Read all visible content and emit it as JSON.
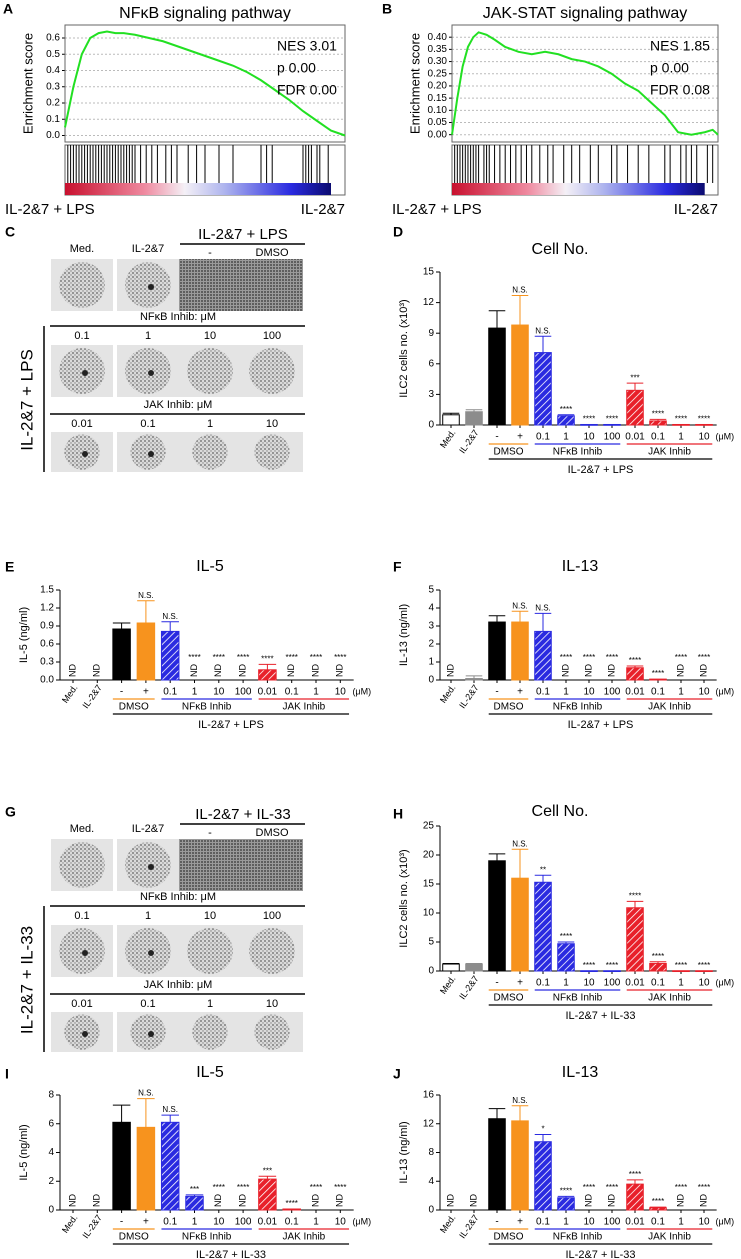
{
  "chart_data": [
    {
      "type": "gsea",
      "panel": "A",
      "title": "NFκB signaling pathway",
      "ylabel": "Enrichment score",
      "stats": [
        "NES 3.01",
        "p 0.00",
        "FDR 0.00"
      ],
      "color": "#22e022",
      "x": [
        0,
        3,
        6,
        9,
        12,
        15,
        18,
        21,
        25,
        30,
        35,
        40,
        45,
        50,
        55,
        60,
        65,
        70,
        75,
        80,
        85,
        90,
        95,
        100
      ],
      "values": [
        0.05,
        0.3,
        0.5,
        0.6,
        0.63,
        0.64,
        0.63,
        0.63,
        0.62,
        0.6,
        0.58,
        0.55,
        0.52,
        0.49,
        0.46,
        0.43,
        0.39,
        0.34,
        0.28,
        0.22,
        0.15,
        0.09,
        0.03,
        0.0
      ],
      "hits": [
        1,
        2,
        3,
        4,
        5,
        6,
        7,
        8,
        9,
        10,
        11,
        12,
        13,
        14,
        15,
        16,
        17,
        18,
        19,
        20,
        21,
        22,
        23,
        24,
        25,
        27,
        29,
        31,
        33,
        36,
        38,
        40,
        44,
        47,
        50,
        55,
        60,
        70,
        72,
        74,
        85,
        86,
        87,
        88,
        90,
        91,
        94
      ],
      "xlim": [
        0,
        100
      ],
      "ylim": [
        -0.04,
        0.68
      ],
      "yticks": [
        {
          "value": 0,
          "label": "0.0"
        },
        0.1,
        0.2,
        0.3,
        0.4,
        0.5,
        0.6
      ],
      "grid": true,
      "left_label": "IL-2&7 + LPS",
      "right_label": "IL-2&7",
      "left_color": "#e8202a",
      "right_color": "#2121d8"
    },
    {
      "type": "gsea",
      "panel": "B",
      "title": "JAK-STAT signaling pathway",
      "ylabel": "Enrichment score",
      "stats": [
        "NES 1.85",
        "p 0.00",
        "FDR 0.08"
      ],
      "color": "#22e022",
      "x": [
        0,
        2,
        4,
        6,
        8,
        10,
        13,
        16,
        20,
        25,
        30,
        35,
        40,
        45,
        50,
        55,
        60,
        65,
        70,
        75,
        80,
        85,
        90,
        95,
        98,
        100
      ],
      "values": [
        0.0,
        0.15,
        0.28,
        0.36,
        0.4,
        0.42,
        0.41,
        0.39,
        0.36,
        0.34,
        0.33,
        0.34,
        0.33,
        0.31,
        0.3,
        0.28,
        0.25,
        0.21,
        0.18,
        0.13,
        0.08,
        0.01,
        0.0,
        0.01,
        0.02,
        0.0
      ],
      "hits": [
        1,
        2,
        3,
        4,
        5,
        6,
        7,
        8,
        9,
        10,
        12,
        13,
        14,
        16,
        18,
        20,
        22,
        24,
        26,
        28,
        30,
        33,
        36,
        38,
        42,
        45,
        48,
        52,
        55,
        60,
        62,
        66,
        70,
        74,
        80,
        82,
        86,
        88,
        90,
        92,
        96,
        98
      ],
      "xlim": [
        0,
        100
      ],
      "ylim": [
        -0.03,
        0.45
      ],
      "yticks": [
        {
          "value": 0,
          "label": "0.00"
        },
        0.05,
        {
          "value": 0.1,
          "label": "0.10"
        },
        0.15,
        {
          "value": 0.2,
          "label": "0.20"
        },
        0.25,
        {
          "value": 0.3,
          "label": "0.30"
        },
        0.35,
        {
          "value": 0.4,
          "label": "0.40"
        }
      ],
      "grid": true,
      "left_label": "IL-2&7 + LPS",
      "right_label": "IL-2&7",
      "left_color": "#e8202a",
      "right_color": "#2121d8"
    },
    {
      "type": "bar",
      "panel": "D",
      "title": "Cell No.",
      "ylabel": "ILC2 cells no. (x10³)",
      "xlabel": "IL-2&7 + LPS",
      "unit": "(μM)",
      "categories": [
        "Med.",
        "IL-2&7",
        "-",
        "+",
        "0.1",
        "1",
        "10",
        "100",
        "0.01",
        "0.1",
        "1",
        "10"
      ],
      "values": [
        1.0,
        1.3,
        9.5,
        9.8,
        7.1,
        0.9,
        0.05,
        0.05,
        3.4,
        0.4,
        0.05,
        0.05
      ],
      "errors": [
        0.15,
        0.2,
        1.7,
        2.9,
        1.6,
        0.1,
        null,
        null,
        0.7,
        0.15,
        null,
        null
      ],
      "annotations": [
        null,
        null,
        null,
        "N.S.",
        "N.S.",
        "****",
        "****",
        "****",
        "***",
        "****",
        "****",
        "****"
      ],
      "colors": [
        "#ffffff",
        "#8c8c8c",
        "#000000",
        "#f7931e",
        "#2a2ae0",
        "#2a2ae0",
        "#2a2ae0",
        "#2a2ae0",
        "#e8202a",
        "#e8202a",
        "#e8202a",
        "#e8202a"
      ],
      "hatch": [
        false,
        false,
        false,
        false,
        true,
        true,
        true,
        true,
        true,
        true,
        true,
        true
      ],
      "groups": [
        {
          "name": "DMSO",
          "color": "#f7931e",
          "span": [
            2,
            3
          ]
        },
        {
          "name": "NFκB Inhib",
          "color": "#2a2ae0",
          "span": [
            4,
            7
          ]
        },
        {
          "name": "JAK Inhib",
          "color": "#e8202a",
          "span": [
            8,
            11
          ]
        }
      ],
      "ylim": [
        0,
        15
      ],
      "yticks": [
        0,
        3,
        6,
        9,
        12,
        15
      ]
    },
    {
      "type": "bar",
      "panel": "E",
      "title": "IL-5",
      "ylabel": "IL-5 (ng/ml)",
      "xlabel": "IL-2&7 + LPS",
      "unit": "(μM)",
      "categories": [
        "Med.",
        "IL-2&7",
        "-",
        "+",
        "0.1",
        "1",
        "10",
        "100",
        "0.01",
        "0.1",
        "1",
        "10"
      ],
      "values": [
        null,
        null,
        0.85,
        0.95,
        0.81,
        null,
        null,
        null,
        0.17,
        null,
        null,
        null
      ],
      "errors": [
        null,
        null,
        0.1,
        0.37,
        0.16,
        null,
        null,
        null,
        0.09,
        null,
        null,
        null
      ],
      "value_labels": [
        "ND",
        "ND",
        null,
        null,
        null,
        "ND",
        "ND",
        "ND",
        null,
        "ND",
        "ND",
        "ND"
      ],
      "annotations": [
        null,
        null,
        null,
        "N.S.",
        "N.S.",
        "****",
        "****",
        "****",
        "****",
        "****",
        "****",
        "****"
      ],
      "colors": [
        "#ffffff",
        "#8c8c8c",
        "#000000",
        "#f7931e",
        "#2a2ae0",
        "#2a2ae0",
        "#2a2ae0",
        "#2a2ae0",
        "#e8202a",
        "#e8202a",
        "#e8202a",
        "#e8202a"
      ],
      "hatch": [
        false,
        false,
        false,
        false,
        true,
        true,
        true,
        true,
        true,
        true,
        true,
        true
      ],
      "groups": [
        {
          "name": "DMSO",
          "color": "#f7931e",
          "span": [
            2,
            3
          ]
        },
        {
          "name": "NFκB Inhib",
          "color": "#2a2ae0",
          "span": [
            4,
            7
          ]
        },
        {
          "name": "JAK Inhib",
          "color": "#e8202a",
          "span": [
            8,
            11
          ]
        }
      ],
      "ylim": [
        0,
        1.5
      ],
      "yticks": [
        {
          "value": 0,
          "label": "0.0"
        },
        0.3,
        0.6,
        0.9,
        1.2,
        1.5
      ]
    },
    {
      "type": "bar",
      "panel": "F",
      "title": "IL-13",
      "ylabel": "IL-13 (ng/ml)",
      "xlabel": "IL-2&7 + LPS",
      "unit": "(μM)",
      "categories": [
        "Med.",
        "IL-2&7",
        "-",
        "+",
        "0.1",
        "1",
        "10",
        "100",
        "0.01",
        "0.1",
        "1",
        "10"
      ],
      "values": [
        null,
        0.08,
        3.22,
        3.22,
        2.7,
        null,
        null,
        null,
        0.68,
        0.05,
        null,
        null
      ],
      "errors": [
        null,
        0.15,
        0.35,
        0.6,
        1.0,
        null,
        null,
        null,
        0.1,
        null,
        null,
        null
      ],
      "value_labels": [
        "ND",
        null,
        null,
        null,
        null,
        "ND",
        "ND",
        "ND",
        null,
        null,
        "ND",
        "ND"
      ],
      "annotations": [
        null,
        null,
        null,
        "N.S.",
        "N.S.",
        "****",
        "****",
        "****",
        "****",
        "****",
        "****",
        "****"
      ],
      "colors": [
        "#ffffff",
        "#8c8c8c",
        "#000000",
        "#f7931e",
        "#2a2ae0",
        "#2a2ae0",
        "#2a2ae0",
        "#2a2ae0",
        "#e8202a",
        "#e8202a",
        "#e8202a",
        "#e8202a"
      ],
      "hatch": [
        false,
        false,
        false,
        false,
        true,
        true,
        true,
        true,
        true,
        true,
        true,
        true
      ],
      "groups": [
        {
          "name": "DMSO",
          "color": "#f7931e",
          "span": [
            2,
            3
          ]
        },
        {
          "name": "NFκB Inhib",
          "color": "#2a2ae0",
          "span": [
            4,
            7
          ]
        },
        {
          "name": "JAK Inhib",
          "color": "#e8202a",
          "span": [
            8,
            11
          ]
        }
      ],
      "ylim": [
        0,
        5
      ],
      "yticks": [
        0,
        1,
        2,
        3,
        4,
        5
      ]
    },
    {
      "type": "bar",
      "panel": "H",
      "title": "Cell No.",
      "ylabel": "ILC2 cells no. (x10³)",
      "xlabel": "IL-2&7 + IL-33",
      "unit": "(μM)",
      "categories": [
        "Med.",
        "IL-2&7",
        "-",
        "+",
        "0.1",
        "1",
        "10",
        "100",
        "0.01",
        "0.1",
        "1",
        "10"
      ],
      "values": [
        1.2,
        1.2,
        19,
        16,
        15.3,
        4.7,
        0.05,
        0.05,
        10.9,
        1.3,
        0.05,
        0.05
      ],
      "errors": [
        0.1,
        0.1,
        1.2,
        5,
        1.2,
        0.3,
        null,
        null,
        1.1,
        0.3,
        null,
        null
      ],
      "annotations": [
        null,
        null,
        null,
        "N.S.",
        "**",
        "****",
        "****",
        "****",
        "****",
        "****",
        "****",
        "****"
      ],
      "colors": [
        "#ffffff",
        "#8c8c8c",
        "#000000",
        "#f7931e",
        "#2a2ae0",
        "#2a2ae0",
        "#2a2ae0",
        "#2a2ae0",
        "#e8202a",
        "#e8202a",
        "#e8202a",
        "#e8202a"
      ],
      "hatch": [
        false,
        false,
        false,
        false,
        true,
        true,
        true,
        true,
        true,
        true,
        true,
        true
      ],
      "groups": [
        {
          "name": "DMSO",
          "color": "#f7931e",
          "span": [
            2,
            3
          ]
        },
        {
          "name": "NFκB Inhib",
          "color": "#2a2ae0",
          "span": [
            4,
            7
          ]
        },
        {
          "name": "JAK Inhib",
          "color": "#e8202a",
          "span": [
            8,
            11
          ]
        }
      ],
      "ylim": [
        0,
        25
      ],
      "yticks": [
        0,
        5,
        10,
        15,
        20,
        25
      ]
    },
    {
      "type": "bar",
      "panel": "I",
      "title": "IL-5",
      "ylabel": "IL-5 (ng/ml)",
      "xlabel": "IL-2&7 + IL-33",
      "unit": "(μM)",
      "categories": [
        "Med.",
        "IL-2&7",
        "-",
        "+",
        "0.1",
        "1",
        "10",
        "100",
        "0.01",
        "0.1",
        "1",
        "10"
      ],
      "values": [
        null,
        null,
        6.1,
        5.75,
        6.1,
        0.95,
        null,
        null,
        2.15,
        0.07,
        null,
        null
      ],
      "errors": [
        null,
        null,
        1.2,
        2.0,
        0.5,
        0.1,
        null,
        null,
        0.2,
        null,
        null,
        null
      ],
      "value_labels": [
        "ND",
        "ND",
        null,
        null,
        null,
        null,
        "ND",
        "ND",
        null,
        null,
        "ND",
        "ND"
      ],
      "annotations": [
        null,
        null,
        null,
        "N.S.",
        "N.S.",
        "***",
        "****",
        "****",
        "***",
        "****",
        "****",
        "****"
      ],
      "colors": [
        "#ffffff",
        "#8c8c8c",
        "#000000",
        "#f7931e",
        "#2a2ae0",
        "#2a2ae0",
        "#2a2ae0",
        "#2a2ae0",
        "#e8202a",
        "#e8202a",
        "#e8202a",
        "#e8202a"
      ],
      "hatch": [
        false,
        false,
        false,
        false,
        true,
        true,
        true,
        true,
        true,
        true,
        true,
        true
      ],
      "groups": [
        {
          "name": "DMSO",
          "color": "#f7931e",
          "span": [
            2,
            3
          ]
        },
        {
          "name": "NFκB Inhib",
          "color": "#2a2ae0",
          "span": [
            4,
            7
          ]
        },
        {
          "name": "JAK Inhib",
          "color": "#e8202a",
          "span": [
            8,
            11
          ]
        }
      ],
      "ylim": [
        0,
        8
      ],
      "yticks": [
        0,
        2,
        4,
        6,
        8
      ]
    },
    {
      "type": "bar",
      "panel": "J",
      "title": "IL-13",
      "ylabel": "IL-13 (ng/ml)",
      "xlabel": "IL-2&7 + IL-33",
      "unit": "(μM)",
      "categories": [
        "Med.",
        "IL-2&7",
        "-",
        "+",
        "0.1",
        "1",
        "10",
        "100",
        "0.01",
        "0.1",
        "1",
        "10"
      ],
      "values": [
        null,
        null,
        12.7,
        12.4,
        9.5,
        1.7,
        null,
        null,
        3.6,
        0.3,
        null,
        null
      ],
      "errors": [
        null,
        null,
        1.4,
        2.1,
        1.0,
        0.2,
        null,
        null,
        0.6,
        0.1,
        null,
        null
      ],
      "value_labels": [
        "ND",
        "ND",
        null,
        null,
        null,
        null,
        "ND",
        "ND",
        null,
        null,
        "ND",
        "ND"
      ],
      "annotations": [
        null,
        null,
        null,
        "N.S.",
        "*",
        "****",
        "****",
        "****",
        "****",
        "****",
        "****",
        "****"
      ],
      "colors": [
        "#ffffff",
        "#8c8c8c",
        "#000000",
        "#f7931e",
        "#2a2ae0",
        "#2a2ae0",
        "#2a2ae0",
        "#2a2ae0",
        "#e8202a",
        "#e8202a",
        "#e8202a",
        "#e8202a"
      ],
      "hatch": [
        false,
        false,
        false,
        false,
        true,
        true,
        true,
        true,
        true,
        true,
        true,
        true
      ],
      "groups": [
        {
          "name": "DMSO",
          "color": "#f7931e",
          "span": [
            2,
            3
          ]
        },
        {
          "name": "NFκB Inhib",
          "color": "#2a2ae0",
          "span": [
            4,
            7
          ]
        },
        {
          "name": "JAK Inhib",
          "color": "#e8202a",
          "span": [
            8,
            11
          ]
        }
      ],
      "ylim": [
        0,
        16
      ],
      "yticks": [
        0,
        4,
        8,
        12,
        16
      ]
    }
  ],
  "images": [
    {
      "panel": "C",
      "header": "IL-2&7 + LPS",
      "top": [
        "Med.",
        "IL-2&7",
        "-",
        "DMSO"
      ],
      "nfkb": {
        "label": "NFκB Inhib: μM",
        "color": "#2a2ae0",
        "doses": [
          "0.1",
          "1",
          "10",
          "100"
        ]
      },
      "jak": {
        "label": "JAK Inhib: μM",
        "color": "#e8202a",
        "doses": [
          "0.01",
          "0.1",
          "1",
          "10"
        ]
      },
      "side": "IL-2&7 + LPS"
    },
    {
      "panel": "G",
      "header": "IL-2&7 + IL-33",
      "top": [
        "Med.",
        "IL-2&7",
        "-",
        "DMSO"
      ],
      "nfkb": {
        "label": "NFκB Inhib: μM",
        "color": "#2a2ae0",
        "doses": [
          "0.1",
          "1",
          "10",
          "100"
        ]
      },
      "jak": {
        "label": "JAK Inhib: μM",
        "color": "#e8202a",
        "doses": [
          "0.01",
          "0.1",
          "1",
          "10"
        ]
      },
      "side": "IL-2&7 + IL-33"
    }
  ]
}
